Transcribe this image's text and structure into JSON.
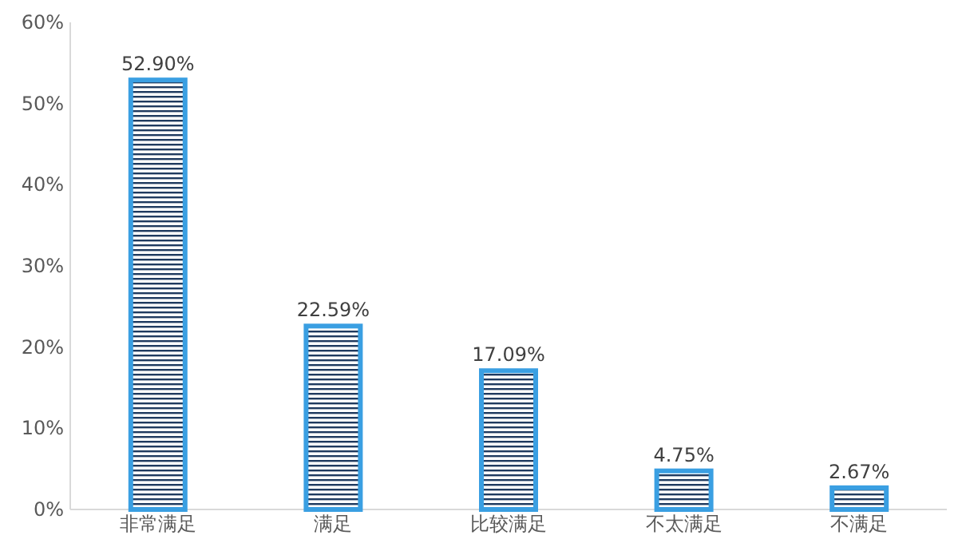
{
  "chart_data": {
    "type": "bar",
    "categories": [
      "非常满足",
      "满足",
      "比较满足",
      "不太满足",
      "不满足"
    ],
    "values": [
      52.9,
      22.59,
      17.09,
      4.75,
      2.67
    ],
    "value_labels": [
      "52.90%",
      "22.59%",
      "17.09%",
      "4.75%",
      "2.67%"
    ],
    "color": "#3a9fe2",
    "ylim": [
      0,
      60
    ],
    "yticks": [
      {
        "value": 0,
        "label": "0%"
      },
      {
        "value": 10,
        "label": "10%"
      },
      {
        "value": 20,
        "label": "20%"
      },
      {
        "value": 30,
        "label": "30%"
      },
      {
        "value": 40,
        "label": "40%"
      },
      {
        "value": 50,
        "label": "50%"
      },
      {
        "value": 60,
        "label": "60%"
      }
    ],
    "grid": false
  }
}
